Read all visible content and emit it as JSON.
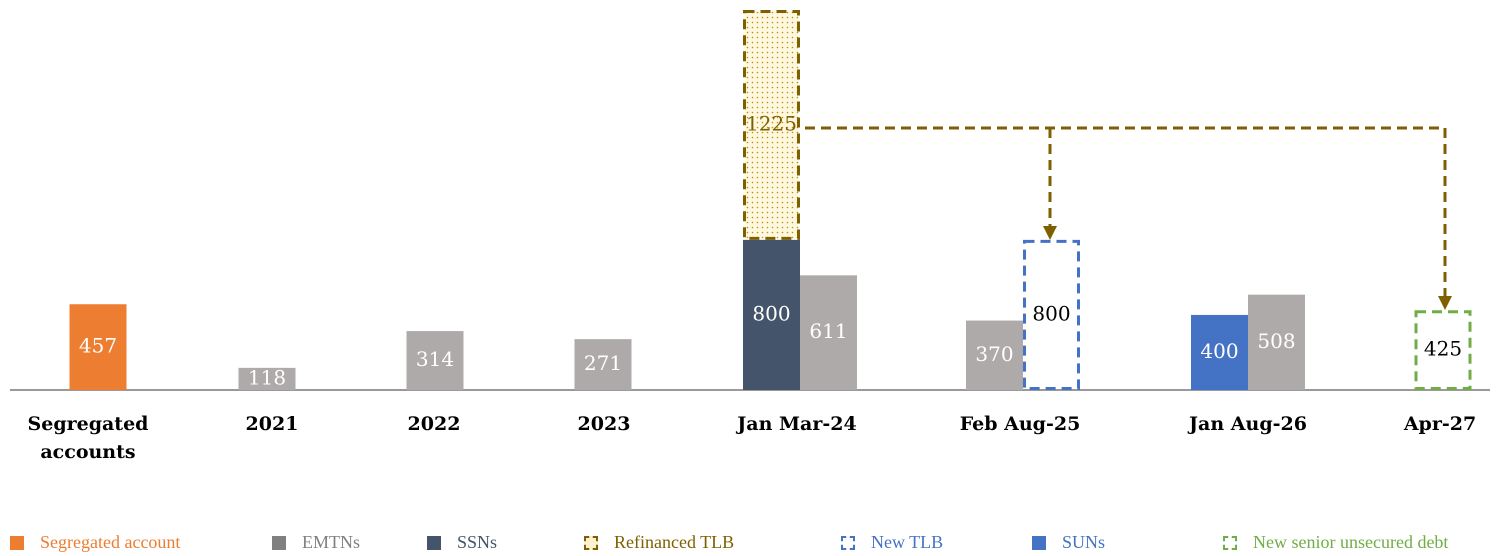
{
  "chart_data": {
    "type": "bar",
    "categories": [
      "Segregated accounts",
      "2021",
      "2022",
      "2023",
      "Jan Mar-24",
      "Feb Aug-25",
      "Jan Aug-26",
      "Apr-27"
    ],
    "series": [
      {
        "name": "Segregated account",
        "color": "#ED7D31",
        "style": "solid",
        "values": [
          457,
          null,
          null,
          null,
          null,
          null,
          null,
          null
        ]
      },
      {
        "name": "EMTNs",
        "color": "#AEAAAA",
        "style": "solid",
        "values": [
          null,
          118,
          314,
          271,
          611,
          370,
          508,
          null
        ]
      },
      {
        "name": "SSNs",
        "color": "#44546A",
        "style": "solid",
        "values": [
          null,
          null,
          null,
          null,
          800,
          null,
          null,
          null
        ]
      },
      {
        "name": "Refinanced TLB",
        "color": "#7F6000",
        "style": "dashed-dotted",
        "values": [
          null,
          null,
          null,
          null,
          1225,
          null,
          null,
          null
        ]
      },
      {
        "name": "New TLB",
        "color": "#4472C4",
        "style": "dashed",
        "values": [
          null,
          null,
          null,
          null,
          null,
          800,
          null,
          null
        ]
      },
      {
        "name": "SUNs",
        "color": "#4472C4",
        "style": "solid",
        "values": [
          null,
          null,
          null,
          null,
          null,
          null,
          400,
          null
        ]
      },
      {
        "name": "New senior unsecured debt",
        "color": "#70AD47",
        "style": "dashed",
        "values": [
          null,
          null,
          null,
          null,
          null,
          null,
          null,
          425
        ]
      }
    ]
  }
}
